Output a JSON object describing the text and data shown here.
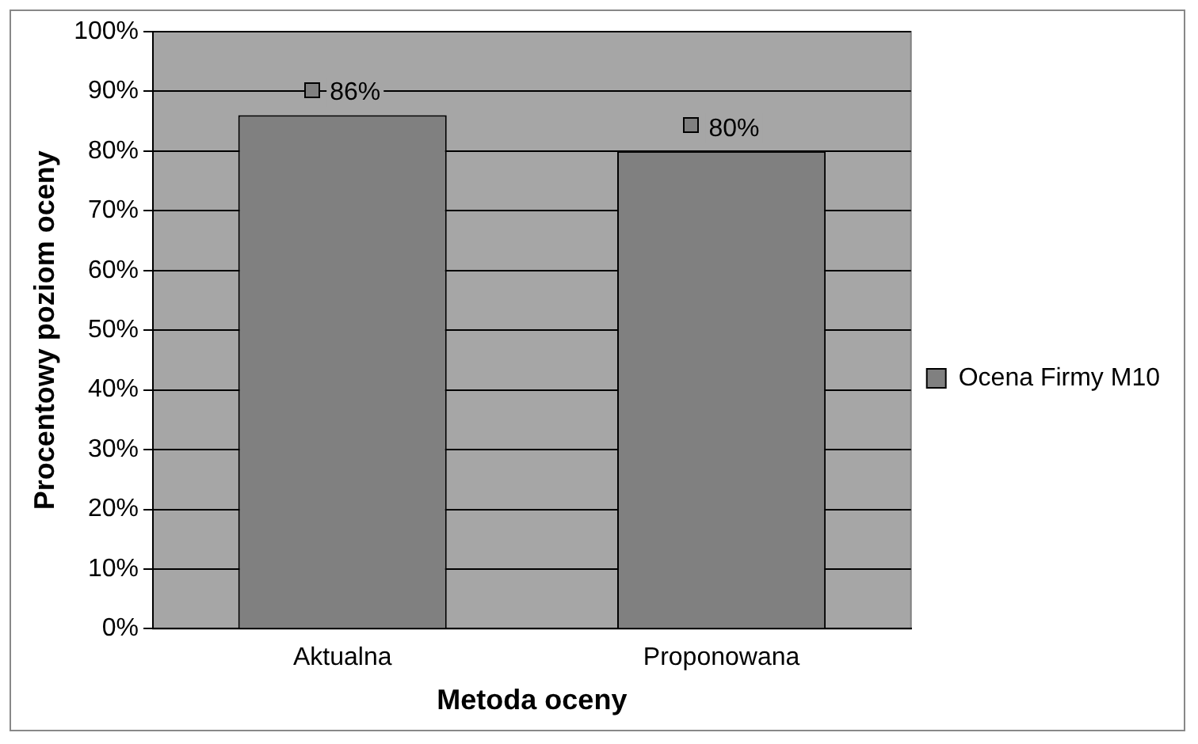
{
  "chart_data": {
    "type": "bar",
    "xlabel": "Metoda oceny",
    "ylabel": "Procentowy poziom oceny",
    "categories": [
      "Aktualna",
      "Proponowana"
    ],
    "series": [
      {
        "name": "Ocena Firmy M10",
        "color": "#808080",
        "values": [
          86,
          80
        ]
      }
    ],
    "ylim": [
      0,
      100
    ],
    "yticks": [
      {
        "value": 0,
        "label": "0%"
      },
      {
        "value": 10,
        "label": "10%"
      },
      {
        "value": 20,
        "label": "20%"
      },
      {
        "value": 30,
        "label": "30%"
      },
      {
        "value": 40,
        "label": "40%"
      },
      {
        "value": 50,
        "label": "50%"
      },
      {
        "value": 60,
        "label": "60%"
      },
      {
        "value": 70,
        "label": "70%"
      },
      {
        "value": 80,
        "label": "80%"
      },
      {
        "value": 90,
        "label": "90%"
      },
      {
        "value": 100,
        "label": "100%"
      }
    ],
    "value_labels": [
      "86%",
      "80%"
    ],
    "grid": "y",
    "legend": "right"
  }
}
